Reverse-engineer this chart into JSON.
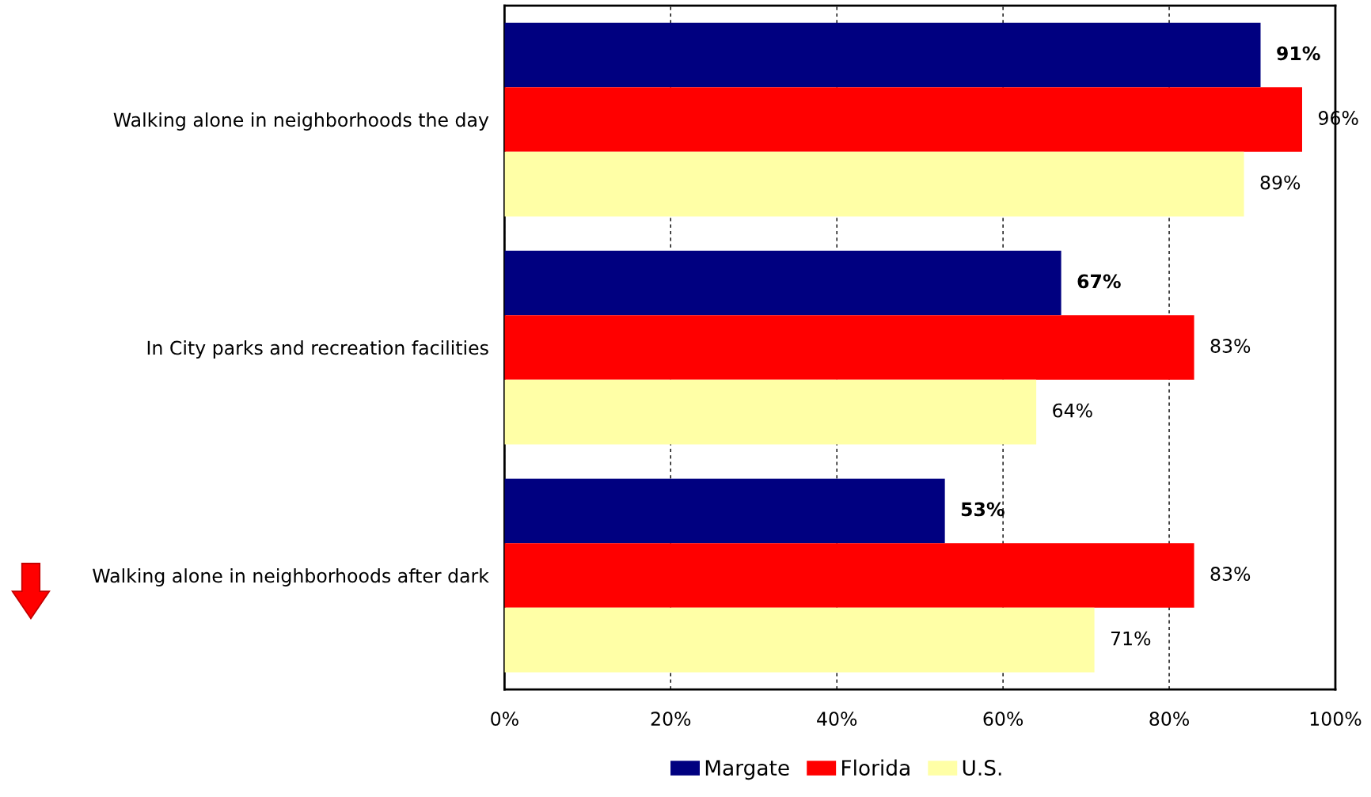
{
  "chart_data": {
    "type": "bar",
    "orientation": "horizontal",
    "categories": [
      "Walking alone in neighborhoods the day",
      "In City parks and recreation facilities",
      "Walking alone in neighborhoods after dark"
    ],
    "series": [
      {
        "name": "Margate",
        "color": "#000080",
        "values": [
          91,
          67,
          53
        ],
        "value_labels": [
          "91%",
          "67%",
          "53%"
        ]
      },
      {
        "name": "Florida",
        "color": "#ff0000",
        "values": [
          96,
          83,
          83
        ],
        "value_labels": [
          "96%",
          "83%",
          "83%"
        ]
      },
      {
        "name": "U.S.",
        "color": "#ffffa6",
        "values": [
          89,
          64,
          71
        ],
        "value_labels": [
          "89%",
          "64%",
          "71%"
        ]
      }
    ],
    "xlim": [
      0,
      100
    ],
    "xticks": [
      {
        "value": 0,
        "label": "0%"
      },
      {
        "value": 20,
        "label": "20%"
      },
      {
        "value": 40,
        "label": "40%"
      },
      {
        "value": 60,
        "label": "60%"
      },
      {
        "value": 80,
        "label": "80%"
      },
      {
        "value": 100,
        "label": "100%"
      }
    ],
    "grid": "x",
    "legend": "bottom"
  }
}
